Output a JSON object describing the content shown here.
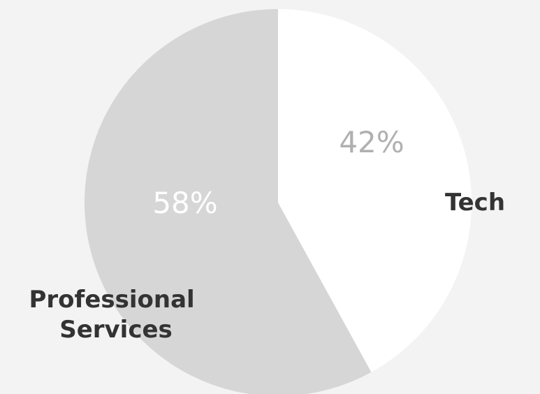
{
  "chart_data": {
    "type": "pie",
    "slices": [
      {
        "label": "Tech",
        "value": 42,
        "value_label": "42%",
        "color": "#ffffff",
        "value_label_color": "#b0b0b0"
      },
      {
        "label": "Professional Services",
        "label_lines": [
          "Professional",
          "Services"
        ],
        "value": 58,
        "value_label": "58%",
        "color": "#d6d6d6",
        "value_label_color": "#ffffff"
      }
    ],
    "start": "12 o'clock",
    "direction": "clockwise",
    "legend": "none",
    "background": "#f3f3f3"
  }
}
